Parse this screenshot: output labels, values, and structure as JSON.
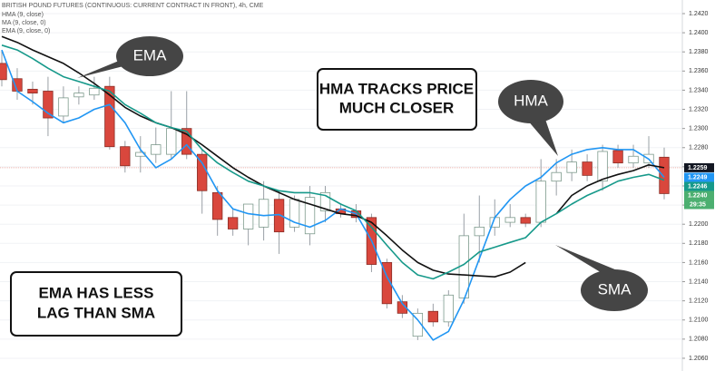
{
  "chart_data": {
    "type": "candlestick",
    "title": "BRITISH POUND FUTURES (CONTINUOUS: CURRENT CONTRACT IN FRONT), 4h, CME",
    "open": [
      1.2368,
      1.2352,
      1.2341,
      1.2339,
      1.2313,
      1.2333,
      1.2335,
      1.2344,
      1.2281,
      1.2271,
      1.2273,
      1.2273,
      1.23,
      1.2273,
      1.2233,
      1.2207,
      1.2195,
      1.2197,
      1.2226,
      1.2197,
      1.219,
      1.2214,
      1.2216,
      1.2214,
      1.2207,
      1.216,
      1.2119,
      1.2083,
      1.2109,
      1.2098,
      1.2123,
      1.2188,
      1.2197,
      1.2202,
      1.2207,
      1.2202,
      1.2245,
      1.2254,
      1.2265,
      1.2245,
      1.2277,
      1.2264,
      1.2264,
      1.227
    ],
    "high": [
      1.2382,
      1.2363,
      1.2349,
      1.2354,
      1.2344,
      1.2344,
      1.2354,
      1.2354,
      1.2287,
      1.2292,
      1.2301,
      1.2339,
      1.2339,
      1.2278,
      1.224,
      1.2216,
      1.2221,
      1.2245,
      1.2235,
      1.223,
      1.224,
      1.224,
      1.2221,
      1.2221,
      1.2211,
      1.2164,
      1.2126,
      1.2112,
      1.2117,
      1.2131,
      1.2211,
      1.223,
      1.2226,
      1.2221,
      1.2211,
      1.2268,
      1.2268,
      1.2278,
      1.2273,
      1.2283,
      1.2283,
      1.2283,
      1.2292,
      1.228
    ],
    "low": [
      1.2344,
      1.233,
      1.2325,
      1.2292,
      1.2306,
      1.2325,
      1.233,
      1.2278,
      1.2254,
      1.2254,
      1.2264,
      1.2268,
      1.2268,
      1.2211,
      1.2188,
      1.2188,
      1.2178,
      1.2183,
      1.2169,
      1.2192,
      1.2178,
      1.2202,
      1.2207,
      1.2202,
      1.215,
      1.2112,
      1.2102,
      1.2079,
      1.2093,
      1.2093,
      1.2117,
      1.216,
      1.2188,
      1.2197,
      1.2197,
      1.2197,
      1.223,
      1.2245,
      1.2245,
      1.2235,
      1.2259,
      1.2259,
      1.2259,
      1.2226
    ],
    "close": [
      1.2351,
      1.2339,
      1.2337,
      1.2311,
      1.2332,
      1.2337,
      1.2342,
      1.2281,
      1.2261,
      1.2275,
      1.2283,
      1.23,
      1.2273,
      1.2235,
      1.2205,
      1.2195,
      1.2221,
      1.2226,
      1.2192,
      1.2226,
      1.2228,
      1.2233,
      1.2211,
      1.2207,
      1.2158,
      1.2117,
      1.2107,
      1.2107,
      1.2098,
      1.2126,
      1.2188,
      1.2197,
      1.2207,
      1.2207,
      1.2201,
      1.2245,
      1.2254,
      1.2265,
      1.2251,
      1.2276,
      1.2264,
      1.2271,
      1.2273,
      1.2232
    ],
    "up_color": "#ffffff",
    "down_color": "#d9473d",
    "series": [
      {
        "name": "HMA (9, close)",
        "color": "#2196f3",
        "values": [
          1.2382,
          1.2339,
          1.2328,
          1.2316,
          1.2306,
          1.2311,
          1.232,
          1.2325,
          1.2306,
          1.2278,
          1.2259,
          1.2268,
          1.2283,
          1.2264,
          1.2235,
          1.2216,
          1.2211,
          1.2209,
          1.221,
          1.2202,
          1.2197,
          1.2204,
          1.2216,
          1.2211,
          1.2183,
          1.2145,
          1.2117,
          1.21,
          1.2079,
          1.2088,
          1.2121,
          1.2164,
          1.2207,
          1.2226,
          1.224,
          1.2249,
          1.2264,
          1.2273,
          1.2278,
          1.228,
          1.2278,
          1.2278,
          1.2268,
          1.2249
        ]
      },
      {
        "name": "MA (9, close, 0)",
        "color": "#111111",
        "values": [
          1.2396,
          1.239,
          1.2382,
          1.2375,
          1.2368,
          1.2358,
          1.2347,
          1.2335,
          1.2322,
          1.2313,
          1.2306,
          1.2301,
          1.2294,
          1.2283,
          1.2271,
          1.2259,
          1.2249,
          1.224,
          1.2233,
          1.2226,
          1.2221,
          1.2216,
          1.2211,
          1.2209,
          1.2202,
          1.2188,
          1.2173,
          1.216,
          1.2152,
          1.2148,
          1.2147,
          1.2146,
          1.2145,
          1.215,
          1.216,
          null,
          1.2211,
          1.223,
          1.224,
          1.2247,
          1.2252,
          1.2256,
          1.2262,
          1.2259
        ]
      },
      {
        "name": "EMA (9, close, 0)",
        "color": "#16998a",
        "values": [
          1.2387,
          1.2382,
          1.2373,
          1.2363,
          1.2354,
          1.2349,
          1.2344,
          1.2339,
          1.2325,
          1.2316,
          1.2306,
          1.2301,
          1.2297,
          1.2278,
          1.2264,
          1.2254,
          1.2245,
          1.224,
          1.2235,
          1.2233,
          1.2233,
          1.223,
          1.2221,
          1.2214,
          1.2197,
          1.2178,
          1.216,
          1.2147,
          1.2143,
          1.215,
          1.2158,
          1.2171,
          1.2176,
          1.2181,
          1.2186,
          1.2202,
          1.2211,
          1.2221,
          1.223,
          1.2237,
          1.2245,
          1.2249,
          1.2252,
          1.2246
        ]
      }
    ],
    "ylim": [
      1.20467,
      1.24342
    ],
    "yticks": [
      {
        "value": 1.242,
        "label": "1.2420"
      },
      {
        "value": 1.24,
        "label": "1.2400"
      },
      {
        "value": 1.238,
        "label": "1.2380"
      },
      {
        "value": 1.236,
        "label": "1.2360"
      },
      {
        "value": 1.234,
        "label": "1.2340"
      },
      {
        "value": 1.232,
        "label": "1.2320"
      },
      {
        "value": 1.23,
        "label": "1.2300"
      },
      {
        "value": 1.228,
        "label": "1.2280"
      },
      {
        "value": 1.226,
        "label": "1.2260"
      },
      {
        "value": 1.224,
        "label": "1.2240"
      },
      {
        "value": 1.222,
        "label": "1.2220"
      },
      {
        "value": 1.22,
        "label": "1.2200"
      },
      {
        "value": 1.218,
        "label": "1.2180"
      },
      {
        "value": 1.216,
        "label": "1.2160"
      },
      {
        "value": 1.214,
        "label": "1.2140"
      },
      {
        "value": 1.212,
        "label": "1.2120"
      },
      {
        "value": 1.21,
        "label": "1.2100"
      },
      {
        "value": 1.208,
        "label": "1.2080"
      },
      {
        "value": 1.206,
        "label": "1.2060"
      }
    ],
    "grid": true,
    "price_tags": [
      {
        "value": 1.2259,
        "color": "#131722"
      },
      {
        "value": 1.2249,
        "color": "#2196f3"
      },
      {
        "value": 1.2246,
        "color": "#16998a"
      },
      {
        "value": 1.224,
        "label": "1.2240",
        "color": "#4caf70"
      }
    ],
    "countdown": "29:35"
  },
  "callouts": [
    "EMA",
    "HMA",
    "SMA"
  ],
  "notes": [
    [
      "HMA TRACKS PRICE",
      "MUCH CLOSER"
    ],
    [
      "EMA HAS LESS",
      "LAG THAN SMA"
    ]
  ]
}
